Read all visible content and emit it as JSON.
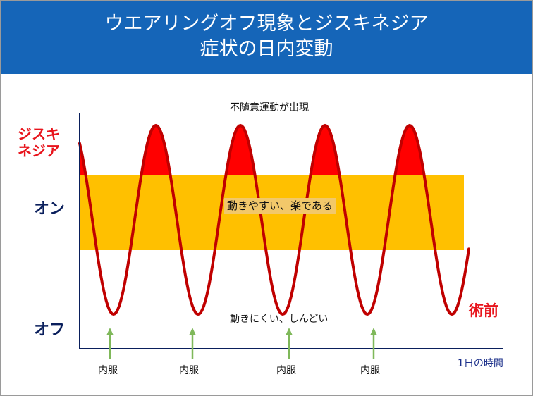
{
  "title": {
    "line1": "ウエアリングオフ現象とジスキネジア",
    "line2": "症状の日内変動"
  },
  "labels": {
    "dyskinesia_line1": "ジスキ",
    "dyskinesia_line2": "ネジア",
    "on": "オン",
    "off": "オフ",
    "dyskinesia_note": "不随意運動が出現",
    "on_note": "動きやすい、楽である",
    "off_note": "動きにくい、しんどい",
    "preop": "術前",
    "x_axis": "1日の時間"
  },
  "doses": [
    "内服",
    "内服",
    "内服",
    "内服"
  ],
  "colors": {
    "header": "#1565b8",
    "on_band": "#ffc000",
    "curve": "#c00000",
    "dyskinesia_fill": "#ff0000",
    "arrow": "#7fb85a",
    "axis": "#0a1f5c"
  },
  "icons": {
    "dose_arrow": "arrow-up-icon"
  }
}
